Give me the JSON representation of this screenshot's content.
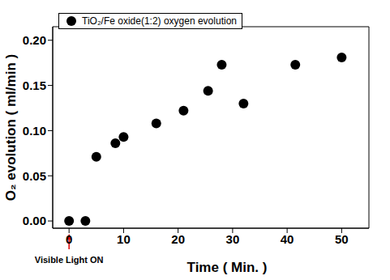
{
  "chart_data": {
    "type": "scatter",
    "x_label": "Time ( Min. )",
    "y_label": "O₂ evolution ( ml/min )",
    "annotation": {
      "text": "Visible Light ON",
      "x": 0
    },
    "series": [
      {
        "name": "TiO₂/Fe oxide(1:2) oxygen evolution",
        "color": "#000000",
        "marker": "circle",
        "x": [
          0,
          3,
          5,
          8.5,
          10,
          16,
          21,
          25.5,
          28,
          32,
          41.5,
          50
        ],
        "values": [
          0,
          0,
          0.071,
          0.086,
          0.093,
          0.108,
          0.122,
          0.144,
          0.173,
          0.13,
          0.173,
          0.181
        ]
      }
    ],
    "xlim": [
      -3,
      55
    ],
    "ylim": [
      -0.008,
      0.215
    ],
    "xticks": [
      0,
      10,
      20,
      30,
      40,
      50
    ],
    "yticks": [
      {
        "value": 0,
        "label": "0.00"
      },
      {
        "value": 0.05,
        "label": "0.05"
      },
      {
        "value": 0.1,
        "label": "0.10"
      },
      {
        "value": 0.15,
        "label": "0.15"
      },
      {
        "value": 0.2,
        "label": "0.20"
      }
    ],
    "legend": "top-left",
    "grid": false
  }
}
